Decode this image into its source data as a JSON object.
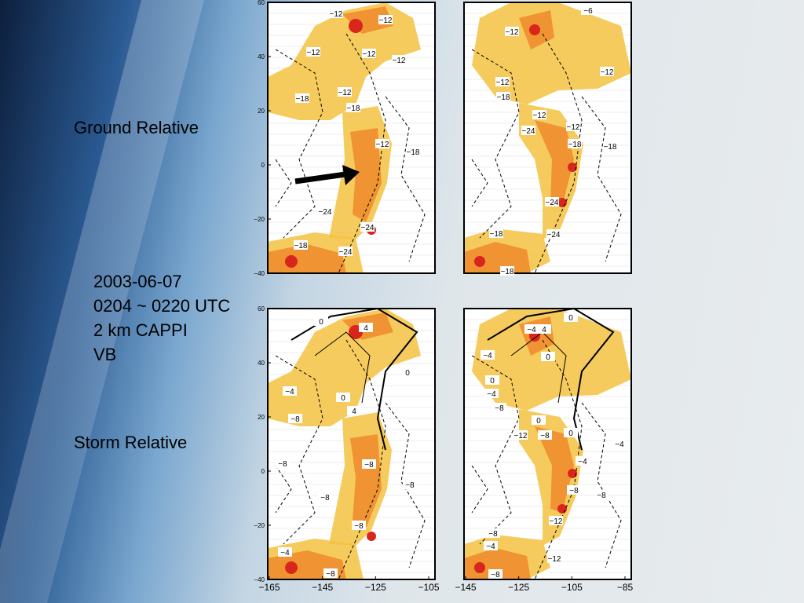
{
  "slide": {
    "labels": {
      "ground_relative": "Ground Relative",
      "storm_relative": "Storm Relative",
      "info": [
        "2003-06-07",
        "0204 ~ 0220 UTC",
        "2 km CAPPI",
        "VB"
      ]
    },
    "axes": {
      "yticks": [
        {
          "value": 60,
          "label": "60"
        },
        {
          "value": 40,
          "label": "40"
        },
        {
          "value": 20,
          "label": "20"
        },
        {
          "value": 0,
          "label": "0"
        },
        {
          "value": -20,
          "label": "−20"
        },
        {
          "value": -40,
          "label": "−40"
        }
      ],
      "xticks_left": [
        {
          "value": -165,
          "label": "−165"
        },
        {
          "value": -145,
          "label": "−145"
        },
        {
          "value": -125,
          "label": "−125"
        },
        {
          "value": -105,
          "label": "−105"
        }
      ],
      "xticks_right": [
        {
          "value": -145,
          "label": "−145"
        },
        {
          "value": -125,
          "label": "−125"
        },
        {
          "value": -105,
          "label": "−105"
        },
        {
          "value": -85,
          "label": "−85"
        }
      ]
    },
    "panels": [
      {
        "contour_labels": [
          "−12",
          "−12",
          "−12",
          "−12",
          "−12",
          "−12",
          "−18",
          "−18",
          "−12",
          "−18",
          "−24",
          "−24",
          "−18",
          "−24"
        ]
      },
      {
        "contour_labels": [
          "−6",
          "−12",
          "−12",
          "−12",
          "−18",
          "−12",
          "−12",
          "−24",
          "−18",
          "−18",
          "−24",
          "−18",
          "−24",
          "−18"
        ]
      },
      {
        "contour_labels": [
          "0",
          "4",
          "0",
          "−4",
          "0",
          "4",
          "−8",
          "−8",
          "−8",
          "−8",
          "−8",
          "−8",
          "−4",
          "−8"
        ]
      },
      {
        "contour_labels": [
          "−4",
          "4",
          "0",
          "−4",
          "0",
          "0",
          "−4",
          "−8",
          "0",
          "−12",
          "−8",
          "0",
          "−4",
          "−4",
          "−8",
          "−8",
          "−12",
          "−8",
          "−4",
          "−12",
          "−8"
        ]
      }
    ]
  }
}
